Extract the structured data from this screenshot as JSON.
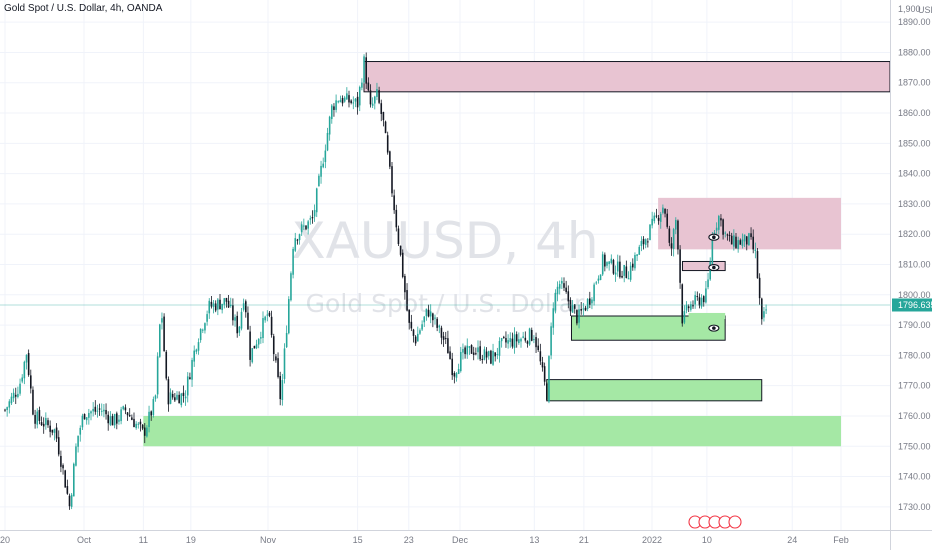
{
  "header": {
    "title": "Gold Spot / U.S. Dollar, 4h, OANDA"
  },
  "watermark": {
    "symbol": "XAUUSD, 4h",
    "description": "Gold Spot / U.S. Dollar"
  },
  "currency_label": "USD",
  "chart_data": {
    "type": "candlestick",
    "symbol": "XAUUSD",
    "interval": "4h",
    "exchange": "OANDA",
    "ylim": [
      1725,
      1895
    ],
    "y_ticks": [
      1730,
      1740,
      1750,
      1760,
      1770,
      1780,
      1790,
      1800,
      1810,
      1820,
      1830,
      1840,
      1850,
      1860,
      1870,
      1880,
      1890
    ],
    "y_top_label": "1,900",
    "x_ticks": [
      {
        "label": "20",
        "date": "2021-09-20"
      },
      {
        "label": "Oct",
        "date": "2021-10-01"
      },
      {
        "label": "11",
        "date": "2021-10-11"
      },
      {
        "label": "19",
        "date": "2021-10-19"
      },
      {
        "label": "Nov",
        "date": "2021-11-01"
      },
      {
        "label": "15",
        "date": "2021-11-15"
      },
      {
        "label": "23",
        "date": "2021-11-23"
      },
      {
        "label": "Dec",
        "date": "2021-12-01"
      },
      {
        "label": "13",
        "date": "2021-12-13"
      },
      {
        "label": "21",
        "date": "2021-12-21"
      },
      {
        "label": "2022",
        "date": "2022-01-01"
      },
      {
        "label": "10",
        "date": "2022-01-10"
      },
      {
        "label": "24",
        "date": "2022-01-24"
      },
      {
        "label": "Feb",
        "date": "2022-02-01"
      }
    ],
    "last_price": {
      "value": "1796.635",
      "color": "#26a69a"
    },
    "price_path": [
      [
        "2021-09-20",
        1762
      ],
      [
        "2021-09-22",
        1770
      ],
      [
        "2021-09-23",
        1781
      ],
      [
        "2021-09-24",
        1760
      ],
      [
        "2021-09-27",
        1755
      ],
      [
        "2021-09-28",
        1743
      ],
      [
        "2021-09-29",
        1730
      ],
      [
        "2021-09-30",
        1752
      ],
      [
        "2021-10-01",
        1761
      ],
      [
        "2021-10-04",
        1762
      ],
      [
        "2021-10-06",
        1758
      ],
      [
        "2021-10-08",
        1762
      ],
      [
        "2021-10-11",
        1754
      ],
      [
        "2021-10-13",
        1765
      ],
      [
        "2021-10-14",
        1797
      ],
      [
        "2021-10-15",
        1766
      ],
      [
        "2021-10-18",
        1767
      ],
      [
        "2021-10-20",
        1785
      ],
      [
        "2021-10-22",
        1796
      ],
      [
        "2021-10-25",
        1798
      ],
      [
        "2021-10-27",
        1788
      ],
      [
        "2021-10-28",
        1801
      ],
      [
        "2021-10-29",
        1780
      ],
      [
        "2021-11-01",
        1794
      ],
      [
        "2021-11-03",
        1765
      ],
      [
        "2021-11-04",
        1792
      ],
      [
        "2021-11-05",
        1819
      ],
      [
        "2021-11-08",
        1825
      ],
      [
        "2021-11-10",
        1850
      ],
      [
        "2021-11-11",
        1862
      ],
      [
        "2021-11-12",
        1865
      ],
      [
        "2021-11-15",
        1863
      ],
      [
        "2021-11-16",
        1877
      ],
      [
        "2021-11-17",
        1861
      ],
      [
        "2021-11-18",
        1866
      ],
      [
        "2021-11-19",
        1857
      ],
      [
        "2021-11-22",
        1808
      ],
      [
        "2021-11-23",
        1790
      ],
      [
        "2021-11-24",
        1785
      ],
      [
        "2021-11-26",
        1795
      ],
      [
        "2021-11-29",
        1783
      ],
      [
        "2021-11-30",
        1774
      ],
      [
        "2021-12-01",
        1779
      ],
      [
        "2021-12-03",
        1782
      ],
      [
        "2021-12-06",
        1779
      ],
      [
        "2021-12-08",
        1784
      ],
      [
        "2021-12-10",
        1785
      ],
      [
        "2021-12-13",
        1787
      ],
      [
        "2021-12-15",
        1767
      ],
      [
        "2021-12-16",
        1797
      ],
      [
        "2021-12-17",
        1804
      ],
      [
        "2021-12-20",
        1792
      ],
      [
        "2021-12-22",
        1799
      ],
      [
        "2021-12-24",
        1811
      ],
      [
        "2021-12-28",
        1807
      ],
      [
        "2021-12-30",
        1815
      ],
      [
        "2022-01-03",
        1830
      ],
      [
        "2022-01-04",
        1813
      ],
      [
        "2022-01-05",
        1826
      ],
      [
        "2022-01-06",
        1791
      ],
      [
        "2022-01-07",
        1796
      ],
      [
        "2022-01-10",
        1800
      ],
      [
        "2022-01-11",
        1821
      ],
      [
        "2022-01-12",
        1826
      ],
      [
        "2022-01-13",
        1820
      ],
      [
        "2022-01-14",
        1817
      ],
      [
        "2022-01-17",
        1818
      ],
      [
        "2022-01-18",
        1813
      ],
      [
        "2022-01-19",
        1790
      ],
      [
        "2022-01-20",
        1797
      ]
    ],
    "zones": [
      {
        "type": "supply",
        "from": "2021-11-16",
        "to": "2022-02-10",
        "top": 1877,
        "bottom": 1867,
        "outlined": true
      },
      {
        "type": "supply",
        "from": "2022-01-02",
        "to": "2022-02-01",
        "top": 1832,
        "bottom": 1815,
        "outlined": false
      },
      {
        "type": "supply",
        "from": "2022-01-06",
        "to": "2022-01-13",
        "top": 1811,
        "bottom": 1808,
        "outlined": true
      },
      {
        "type": "demand",
        "from": "2021-12-19",
        "to": "2022-01-13",
        "top": 1793,
        "bottom": 1785,
        "outlined": true
      },
      {
        "type": "demand",
        "from": "2022-01-07",
        "to": "2022-01-13",
        "top": 1794,
        "bottom": 1792,
        "outlined": false
      },
      {
        "type": "demand",
        "from": "2021-12-15",
        "to": "2022-01-19",
        "top": 1772,
        "bottom": 1765,
        "outlined": true
      },
      {
        "type": "demand",
        "from": "2021-10-11",
        "to": "2022-02-01",
        "top": 1760,
        "bottom": 1750,
        "outlined": false
      }
    ],
    "eye_markers": [
      {
        "date": "2022-01-10",
        "price": 1819
      },
      {
        "date": "2022-01-10",
        "price": 1809
      },
      {
        "date": "2022-01-10",
        "price": 1789
      }
    ],
    "colors": {
      "bull": "#26a69a",
      "bear": "#131722",
      "supply_fill": "#e8c4d2",
      "demand_fill": "#a5e8a5",
      "zone_border": "#131722",
      "grid": "#f0f3fa",
      "price_line": "#26a69a"
    }
  }
}
